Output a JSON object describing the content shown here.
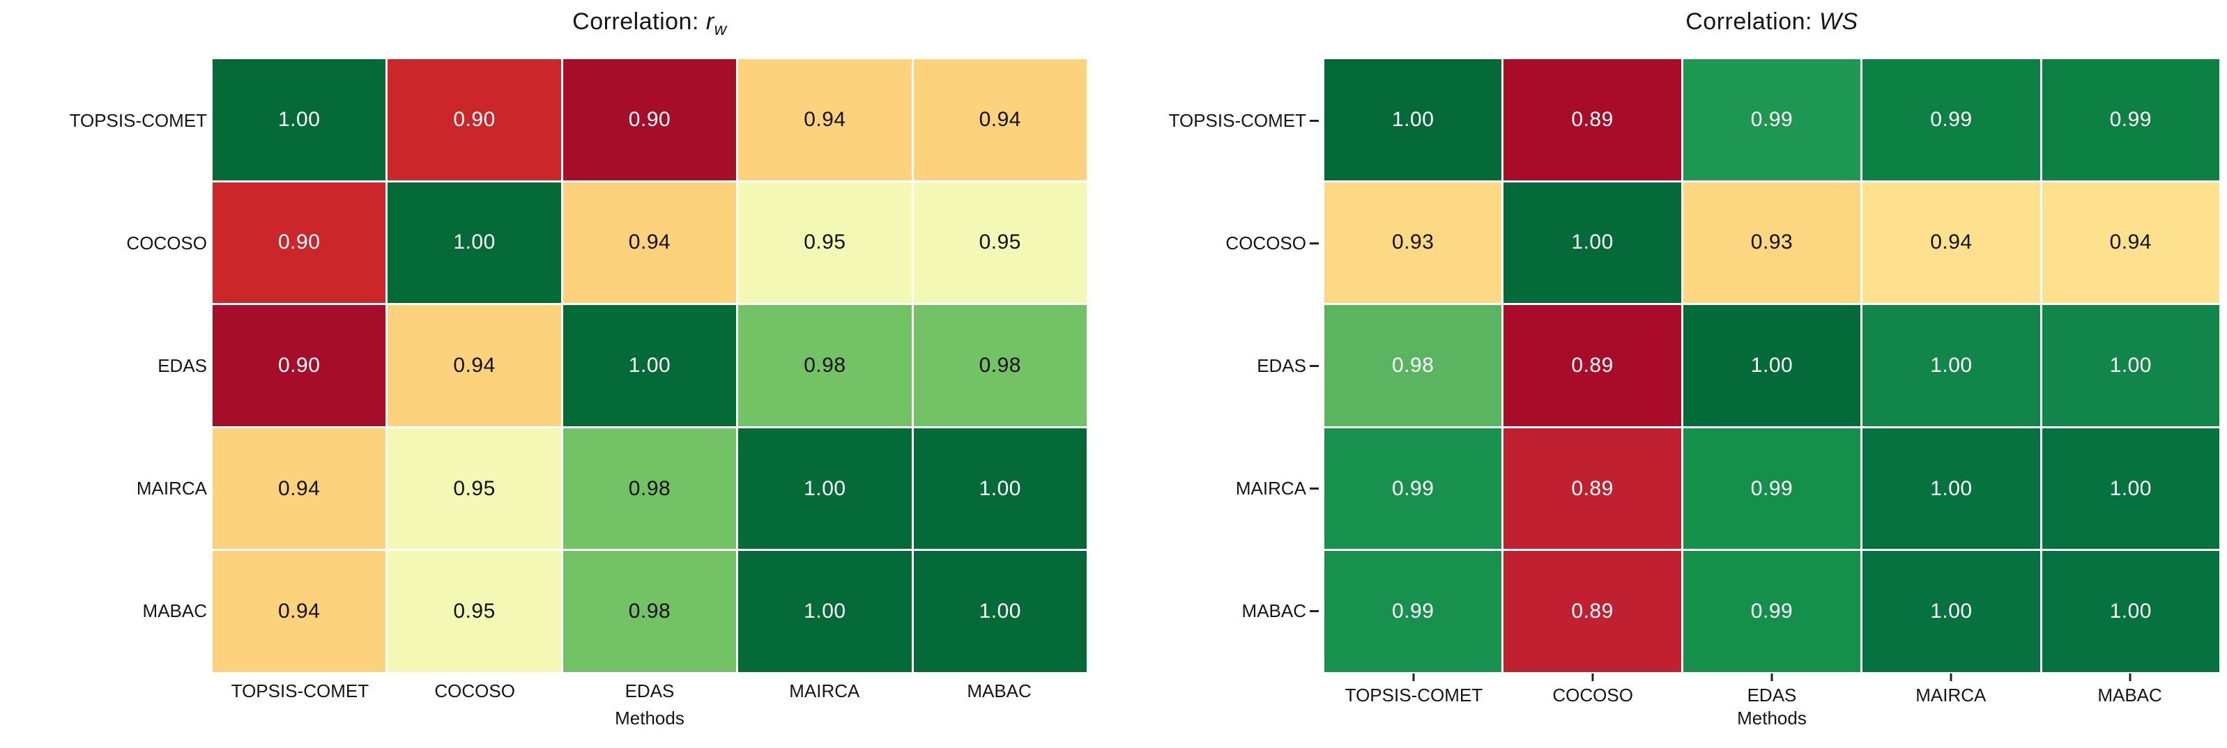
{
  "page": {
    "background": "#ffffff"
  },
  "chart_data": [
    {
      "type": "heatmap",
      "title": {
        "prefix": "Correlation: ",
        "symbol": "r",
        "subscript": "w"
      },
      "xlabel": "Methods",
      "categories": [
        "TOPSIS-COMET",
        "COCOSO",
        "EDAS",
        "MAIRCA",
        "MABAC"
      ],
      "row_labels": [
        "TOPSIS-COMET",
        "COCOSO",
        "EDAS",
        "MAIRCA",
        "MABAC"
      ],
      "values": [
        [
          1.0,
          0.9,
          0.9,
          0.94,
          0.94
        ],
        [
          0.9,
          1.0,
          0.94,
          0.95,
          0.95
        ],
        [
          0.9,
          0.94,
          1.0,
          0.98,
          0.98
        ],
        [
          0.94,
          0.95,
          0.98,
          1.0,
          1.0
        ],
        [
          0.94,
          0.95,
          0.98,
          1.0,
          1.0
        ]
      ],
      "cell_colors": [
        [
          "#046a38",
          "#cb2629",
          "#a50d28",
          "#fcd27d",
          "#fcd27d"
        ],
        [
          "#cb2629",
          "#046a38",
          "#fcd27d",
          "#f3f9b5",
          "#f3f9b5"
        ],
        [
          "#a50d28",
          "#fcd27d",
          "#046a38",
          "#74c266",
          "#74c266"
        ],
        [
          "#fcd27d",
          "#f3f9b5",
          "#74c266",
          "#046a38",
          "#046a38"
        ],
        [
          "#fcd27d",
          "#f3f9b5",
          "#74c266",
          "#046a38",
          "#046a38"
        ]
      ],
      "text_colors": [
        [
          "#ffffff",
          "#ffffff",
          "#ffffff",
          "#111111",
          "#111111"
        ],
        [
          "#ffffff",
          "#ffffff",
          "#111111",
          "#111111",
          "#111111"
        ],
        [
          "#ffffff",
          "#111111",
          "#ffffff",
          "#111111",
          "#111111"
        ],
        [
          "#111111",
          "#111111",
          "#111111",
          "#ffffff",
          "#ffffff"
        ],
        [
          "#111111",
          "#111111",
          "#111111",
          "#ffffff",
          "#ffffff"
        ]
      ],
      "x_ticks": false,
      "y_ticks": false,
      "grid_line_color": "#ffffff",
      "legend": "none"
    },
    {
      "type": "heatmap",
      "title": {
        "prefix": "Correlation: ",
        "symbol": "WS",
        "subscript": ""
      },
      "xlabel": "Methods",
      "categories": [
        "TOPSIS-COMET",
        "COCOSO",
        "EDAS",
        "MAIRCA",
        "MABAC"
      ],
      "row_labels": [
        "TOPSIS-COMET",
        "COCOSO",
        "EDAS",
        "MAIRCA",
        "MABAC"
      ],
      "values": [
        [
          1.0,
          0.89,
          0.99,
          0.99,
          0.99
        ],
        [
          0.93,
          1.0,
          0.93,
          0.94,
          0.94
        ],
        [
          0.98,
          0.89,
          1.0,
          1.0,
          1.0
        ],
        [
          0.99,
          0.89,
          0.99,
          1.0,
          1.0
        ],
        [
          0.99,
          0.89,
          0.99,
          1.0,
          1.0
        ]
      ],
      "cell_colors": [
        [
          "#046a39",
          "#a80c28",
          "#1d9751",
          "#0d8044",
          "#0d8044"
        ],
        [
          "#fdd986",
          "#046a39",
          "#fdd681",
          "#fde18f",
          "#fde18f"
        ],
        [
          "#5bb560",
          "#a80c28",
          "#046a39",
          "#12854a",
          "#12854a"
        ],
        [
          "#17914d",
          "#c12030",
          "#15904b",
          "#067240",
          "#067240"
        ],
        [
          "#17914d",
          "#c12030",
          "#15904b",
          "#067240",
          "#067240"
        ]
      ],
      "text_colors": [
        [
          "#ffffff",
          "#ffffff",
          "#ffffff",
          "#ffffff",
          "#ffffff"
        ],
        [
          "#111111",
          "#ffffff",
          "#111111",
          "#111111",
          "#111111"
        ],
        [
          "#ffffff",
          "#ffffff",
          "#ffffff",
          "#ffffff",
          "#ffffff"
        ],
        [
          "#ffffff",
          "#ffffff",
          "#ffffff",
          "#ffffff",
          "#ffffff"
        ],
        [
          "#ffffff",
          "#ffffff",
          "#ffffff",
          "#ffffff",
          "#ffffff"
        ]
      ],
      "x_ticks": true,
      "y_ticks": true,
      "grid_line_color": "#ffffff",
      "legend": "none"
    }
  ]
}
